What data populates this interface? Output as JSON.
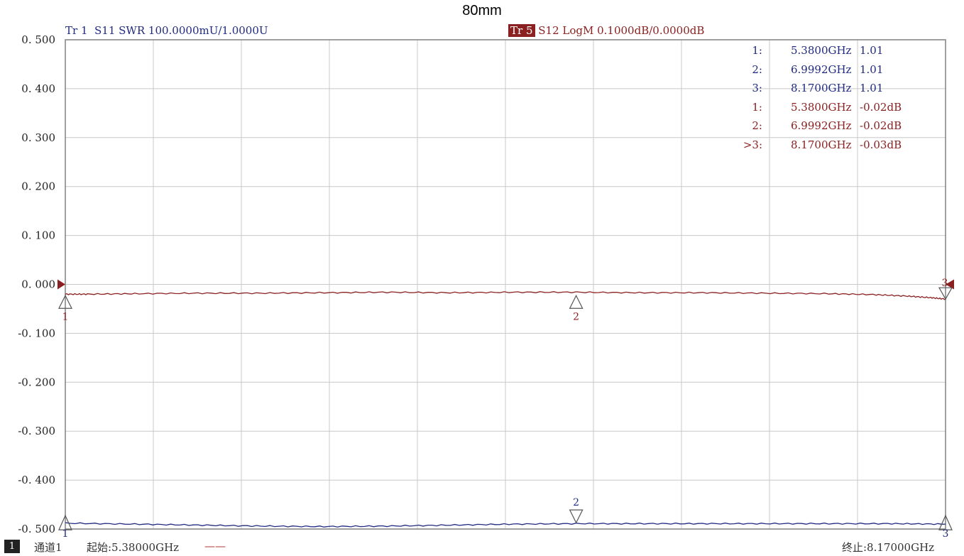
{
  "title": "80mm",
  "trace_headers": {
    "tr1": "Tr 1  S11 SWR 100.0000mU/1.0000U",
    "tr5_badge": "Tr 5",
    "tr5": " S12 LogM 0.1000dB/0.0000dB"
  },
  "colors": {
    "swr_trace": "#1f2a80",
    "logm_trace": "#8b2020",
    "grid": "#c8c8c8",
    "frame": "#808080"
  },
  "marker_table": [
    {
      "idx": "1:",
      "freq": "5.3800GHz",
      "value": "1.01",
      "trace": "swr"
    },
    {
      "idx": "2:",
      "freq": "6.9992GHz",
      "value": "1.01",
      "trace": "swr"
    },
    {
      "idx": "3:",
      "freq": "8.1700GHz",
      "value": "1.01",
      "trace": "swr"
    },
    {
      "idx": "1:",
      "freq": "5.3800GHz",
      "value": "-0.02dB",
      "trace": "logm"
    },
    {
      "idx": "2:",
      "freq": "6.9992GHz",
      "value": "-0.02dB",
      "trace": "logm"
    },
    {
      "idx": ">3:",
      "freq": "8.1700GHz",
      "value": "-0.03dB",
      "trace": "logm"
    }
  ],
  "footer": {
    "channel_badge": "1",
    "channel": "通道1",
    "start": "起始:5.38000GHz",
    "start_dash": "——",
    "stop": "终止:8.17000GHz"
  },
  "chart_data": {
    "type": "line",
    "title": "80mm",
    "xlabel": "",
    "ylabel": "",
    "xlim": [
      5.38,
      8.17
    ],
    "ylim": [
      -0.5,
      0.5
    ],
    "x_divisions": 10,
    "grid": true,
    "y_ticks": [
      "0.500",
      "0.400",
      "0.300",
      "0.200",
      "0.100",
      "0.000",
      "-0.100",
      "-0.200",
      "-0.300",
      "-0.400",
      "-0.500"
    ],
    "series": [
      {
        "name": "Tr 5 S12 LogM",
        "color": "#8b2020",
        "x": [
          5.38,
          5.45,
          5.6,
          5.8,
          6.0,
          6.2,
          6.4,
          6.6,
          6.8,
          6.9992,
          7.2,
          7.4,
          7.6,
          7.8,
          7.95,
          8.05,
          8.12,
          8.17
        ],
        "y": [
          -0.02,
          -0.02,
          -0.019,
          -0.018,
          -0.018,
          -0.017,
          -0.016,
          -0.017,
          -0.016,
          -0.016,
          -0.017,
          -0.017,
          -0.018,
          -0.019,
          -0.021,
          -0.024,
          -0.027,
          -0.03
        ],
        "markers": [
          {
            "label": "1",
            "x": 5.38,
            "y": -0.02
          },
          {
            "label": "2",
            "x": 6.9992,
            "y": -0.02
          },
          {
            "label": "3",
            "x": 8.17,
            "y": -0.03
          }
        ]
      },
      {
        "name": "Tr 1 S11 SWR",
        "color": "#1f2a80",
        "note_units": "plotted on 0.1000/div scale, reference 1.0000U shown off-scale near bottom",
        "x": [
          5.38,
          5.6,
          5.8,
          6.0,
          6.2,
          6.4,
          6.6,
          6.8,
          6.9992,
          7.2,
          7.4,
          7.6,
          7.8,
          8.0,
          8.17
        ],
        "y": [
          -0.488,
          -0.49,
          -0.492,
          -0.494,
          -0.495,
          -0.494,
          -0.492,
          -0.49,
          -0.489,
          -0.489,
          -0.489,
          -0.489,
          -0.489,
          -0.489,
          -0.49
        ],
        "markers": [
          {
            "label": "1",
            "x": 5.38,
            "y": -0.49
          },
          {
            "label": "2",
            "x": 6.9992,
            "y": -0.49
          },
          {
            "label": "3",
            "x": 8.17,
            "y": -0.49
          }
        ]
      }
    ]
  }
}
